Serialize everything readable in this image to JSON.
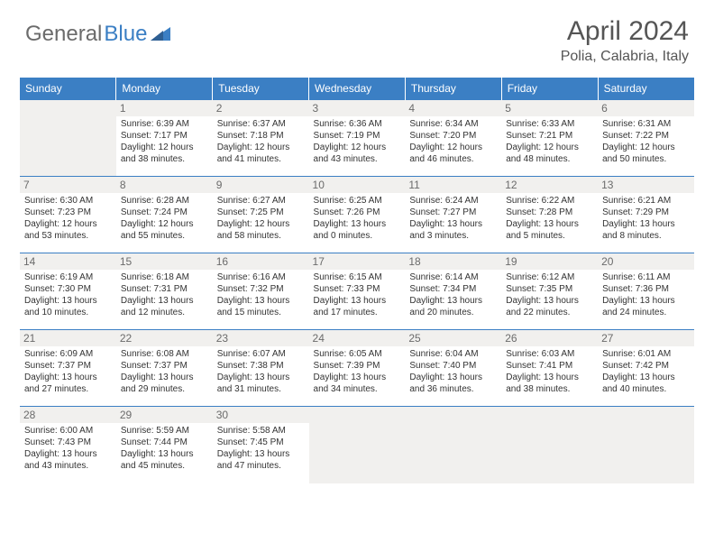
{
  "logo": {
    "part1": "General",
    "part2": "Blue"
  },
  "title": "April 2024",
  "location": "Polia, Calabria, Italy",
  "colors": {
    "header_bg": "#3b7fc4",
    "header_text": "#ffffff",
    "daynum_bg": "#f1f0ee",
    "daynum_text": "#6b6b6b",
    "body_text": "#333333",
    "title_text": "#555555",
    "row_border": "#3b7fc4",
    "logo_gray": "#6b6b6b",
    "logo_blue": "#3b7fc4"
  },
  "typography": {
    "title_fontsize": 30,
    "location_fontsize": 16,
    "header_fontsize": 12,
    "daynum_fontsize": 12,
    "cell_fontsize": 10
  },
  "day_headers": [
    "Sunday",
    "Monday",
    "Tuesday",
    "Wednesday",
    "Thursday",
    "Friday",
    "Saturday"
  ],
  "weeks": [
    [
      null,
      {
        "n": "1",
        "sr": "Sunrise: 6:39 AM",
        "ss": "Sunset: 7:17 PM",
        "dl": "Daylight: 12 hours and 38 minutes."
      },
      {
        "n": "2",
        "sr": "Sunrise: 6:37 AM",
        "ss": "Sunset: 7:18 PM",
        "dl": "Daylight: 12 hours and 41 minutes."
      },
      {
        "n": "3",
        "sr": "Sunrise: 6:36 AM",
        "ss": "Sunset: 7:19 PM",
        "dl": "Daylight: 12 hours and 43 minutes."
      },
      {
        "n": "4",
        "sr": "Sunrise: 6:34 AM",
        "ss": "Sunset: 7:20 PM",
        "dl": "Daylight: 12 hours and 46 minutes."
      },
      {
        "n": "5",
        "sr": "Sunrise: 6:33 AM",
        "ss": "Sunset: 7:21 PM",
        "dl": "Daylight: 12 hours and 48 minutes."
      },
      {
        "n": "6",
        "sr": "Sunrise: 6:31 AM",
        "ss": "Sunset: 7:22 PM",
        "dl": "Daylight: 12 hours and 50 minutes."
      }
    ],
    [
      {
        "n": "7",
        "sr": "Sunrise: 6:30 AM",
        "ss": "Sunset: 7:23 PM",
        "dl": "Daylight: 12 hours and 53 minutes."
      },
      {
        "n": "8",
        "sr": "Sunrise: 6:28 AM",
        "ss": "Sunset: 7:24 PM",
        "dl": "Daylight: 12 hours and 55 minutes."
      },
      {
        "n": "9",
        "sr": "Sunrise: 6:27 AM",
        "ss": "Sunset: 7:25 PM",
        "dl": "Daylight: 12 hours and 58 minutes."
      },
      {
        "n": "10",
        "sr": "Sunrise: 6:25 AM",
        "ss": "Sunset: 7:26 PM",
        "dl": "Daylight: 13 hours and 0 minutes."
      },
      {
        "n": "11",
        "sr": "Sunrise: 6:24 AM",
        "ss": "Sunset: 7:27 PM",
        "dl": "Daylight: 13 hours and 3 minutes."
      },
      {
        "n": "12",
        "sr": "Sunrise: 6:22 AM",
        "ss": "Sunset: 7:28 PM",
        "dl": "Daylight: 13 hours and 5 minutes."
      },
      {
        "n": "13",
        "sr": "Sunrise: 6:21 AM",
        "ss": "Sunset: 7:29 PM",
        "dl": "Daylight: 13 hours and 8 minutes."
      }
    ],
    [
      {
        "n": "14",
        "sr": "Sunrise: 6:19 AM",
        "ss": "Sunset: 7:30 PM",
        "dl": "Daylight: 13 hours and 10 minutes."
      },
      {
        "n": "15",
        "sr": "Sunrise: 6:18 AM",
        "ss": "Sunset: 7:31 PM",
        "dl": "Daylight: 13 hours and 12 minutes."
      },
      {
        "n": "16",
        "sr": "Sunrise: 6:16 AM",
        "ss": "Sunset: 7:32 PM",
        "dl": "Daylight: 13 hours and 15 minutes."
      },
      {
        "n": "17",
        "sr": "Sunrise: 6:15 AM",
        "ss": "Sunset: 7:33 PM",
        "dl": "Daylight: 13 hours and 17 minutes."
      },
      {
        "n": "18",
        "sr": "Sunrise: 6:14 AM",
        "ss": "Sunset: 7:34 PM",
        "dl": "Daylight: 13 hours and 20 minutes."
      },
      {
        "n": "19",
        "sr": "Sunrise: 6:12 AM",
        "ss": "Sunset: 7:35 PM",
        "dl": "Daylight: 13 hours and 22 minutes."
      },
      {
        "n": "20",
        "sr": "Sunrise: 6:11 AM",
        "ss": "Sunset: 7:36 PM",
        "dl": "Daylight: 13 hours and 24 minutes."
      }
    ],
    [
      {
        "n": "21",
        "sr": "Sunrise: 6:09 AM",
        "ss": "Sunset: 7:37 PM",
        "dl": "Daylight: 13 hours and 27 minutes."
      },
      {
        "n": "22",
        "sr": "Sunrise: 6:08 AM",
        "ss": "Sunset: 7:37 PM",
        "dl": "Daylight: 13 hours and 29 minutes."
      },
      {
        "n": "23",
        "sr": "Sunrise: 6:07 AM",
        "ss": "Sunset: 7:38 PM",
        "dl": "Daylight: 13 hours and 31 minutes."
      },
      {
        "n": "24",
        "sr": "Sunrise: 6:05 AM",
        "ss": "Sunset: 7:39 PM",
        "dl": "Daylight: 13 hours and 34 minutes."
      },
      {
        "n": "25",
        "sr": "Sunrise: 6:04 AM",
        "ss": "Sunset: 7:40 PM",
        "dl": "Daylight: 13 hours and 36 minutes."
      },
      {
        "n": "26",
        "sr": "Sunrise: 6:03 AM",
        "ss": "Sunset: 7:41 PM",
        "dl": "Daylight: 13 hours and 38 minutes."
      },
      {
        "n": "27",
        "sr": "Sunrise: 6:01 AM",
        "ss": "Sunset: 7:42 PM",
        "dl": "Daylight: 13 hours and 40 minutes."
      }
    ],
    [
      {
        "n": "28",
        "sr": "Sunrise: 6:00 AM",
        "ss": "Sunset: 7:43 PM",
        "dl": "Daylight: 13 hours and 43 minutes."
      },
      {
        "n": "29",
        "sr": "Sunrise: 5:59 AM",
        "ss": "Sunset: 7:44 PM",
        "dl": "Daylight: 13 hours and 45 minutes."
      },
      {
        "n": "30",
        "sr": "Sunrise: 5:58 AM",
        "ss": "Sunset: 7:45 PM",
        "dl": "Daylight: 13 hours and 47 minutes."
      },
      null,
      null,
      null,
      null
    ]
  ]
}
